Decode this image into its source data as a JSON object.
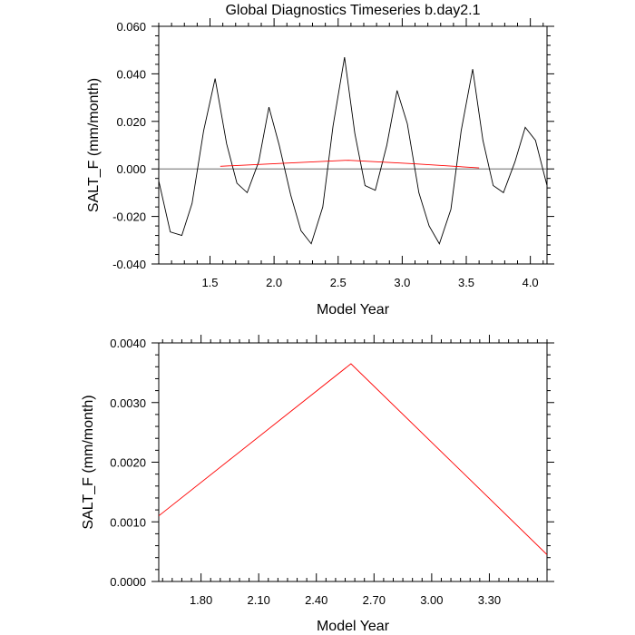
{
  "chart_data": [
    {
      "type": "line",
      "title": "Global Diagnostics Timeseries b.day2.1",
      "xlabel": "Model Year",
      "ylabel": "SALT_F (mm/month)",
      "xlim": [
        1.1,
        4.13
      ],
      "ylim": [
        -0.04,
        0.06
      ],
      "xtick_values": [
        1.5,
        2.0,
        2.5,
        3.0,
        3.5,
        4.0
      ],
      "xtick_labels": [
        "1.5",
        "2.0",
        "2.5",
        "3.0",
        "3.5",
        "4.0"
      ],
      "ytick_values": [
        -0.04,
        -0.02,
        0.0,
        0.02,
        0.04,
        0.06
      ],
      "ytick_labels": [
        "-0.040",
        "-0.020",
        "0.000",
        "0.020",
        "0.040",
        "0.060"
      ],
      "zero_line": 0.0,
      "series": [
        {
          "color": "#000000",
          "x": [
            1.1,
            1.19,
            1.28,
            1.36,
            1.45,
            1.54,
            1.63,
            1.71,
            1.79,
            1.88,
            1.96,
            2.04,
            2.13,
            2.21,
            2.29,
            2.38,
            2.46,
            2.55,
            2.63,
            2.71,
            2.79,
            2.88,
            2.96,
            3.04,
            3.13,
            3.21,
            3.29,
            3.38,
            3.46,
            3.55,
            3.63,
            3.71,
            3.79,
            3.88,
            3.96,
            4.04,
            4.13
          ],
          "values": [
            -0.005,
            -0.0265,
            -0.028,
            -0.0145,
            0.016,
            0.038,
            0.0105,
            -0.006,
            -0.01,
            0.003,
            0.026,
            0.01,
            -0.011,
            -0.026,
            -0.0315,
            -0.016,
            0.018,
            0.047,
            0.015,
            -0.007,
            -0.009,
            0.01,
            0.033,
            0.019,
            -0.01,
            -0.024,
            -0.0315,
            -0.017,
            0.016,
            0.042,
            0.012,
            -0.007,
            -0.01,
            0.003,
            0.0175,
            0.012,
            -0.007
          ]
        },
        {
          "color": "#ff0000",
          "x": [
            1.58,
            2.08,
            2.58,
            3.08,
            3.6
          ],
          "values": [
            0.0011,
            0.0024,
            0.00365,
            0.0022,
            0.00045
          ]
        }
      ]
    },
    {
      "type": "line",
      "title": "",
      "xlabel": "Model Year",
      "ylabel": "SALT_F (mm/month)",
      "xlim": [
        1.58,
        3.6
      ],
      "ylim": [
        0.0,
        0.004
      ],
      "xtick_values": [
        1.8,
        2.1,
        2.4,
        2.7,
        3.0,
        3.3
      ],
      "xtick_labels": [
        "1.80",
        "2.10",
        "2.40",
        "2.70",
        "3.00",
        "3.30"
      ],
      "ytick_values": [
        0.0,
        0.001,
        0.002,
        0.003,
        0.004
      ],
      "ytick_labels": [
        "0.0000",
        "0.0010",
        "0.0020",
        "0.0030",
        "0.0040"
      ],
      "series": [
        {
          "color": "#ff0000",
          "x": [
            1.58,
            2.58,
            3.6
          ],
          "values": [
            0.0011,
            0.00365,
            0.00045
          ]
        }
      ]
    }
  ]
}
